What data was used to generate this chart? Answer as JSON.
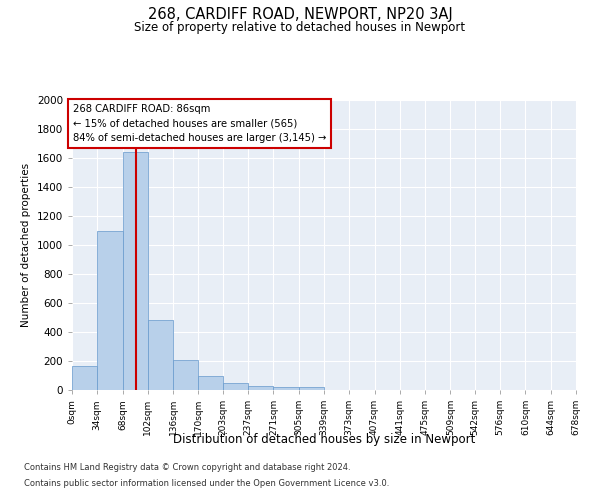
{
  "title": "268, CARDIFF ROAD, NEWPORT, NP20 3AJ",
  "subtitle": "Size of property relative to detached houses in Newport",
  "xlabel": "Distribution of detached houses by size in Newport",
  "ylabel": "Number of detached properties",
  "footnote1": "Contains HM Land Registry data © Crown copyright and database right 2024.",
  "footnote2": "Contains public sector information licensed under the Open Government Licence v3.0.",
  "annotation_title": "268 CARDIFF ROAD: 86sqm",
  "annotation_line1": "← 15% of detached houses are smaller (565)",
  "annotation_line2": "84% of semi-detached houses are larger (3,145) →",
  "property_size": 86,
  "bar_color": "#b8d0ea",
  "bar_edge_color": "#6699cc",
  "vline_color": "#cc0000",
  "annotation_box_color": "#cc0000",
  "background_color": "#e8eef6",
  "ylim": [
    0,
    2000
  ],
  "yticks": [
    0,
    200,
    400,
    600,
    800,
    1000,
    1200,
    1400,
    1600,
    1800,
    2000
  ],
  "bin_edges": [
    0,
    34,
    68,
    102,
    136,
    170,
    203,
    237,
    271,
    305,
    339,
    373,
    407,
    441,
    475,
    509,
    542,
    576,
    610,
    644,
    678
  ],
  "bin_labels": [
    "0sqm",
    "34sqm",
    "68sqm",
    "102sqm",
    "136sqm",
    "170sqm",
    "203sqm",
    "237sqm",
    "271sqm",
    "305sqm",
    "339sqm",
    "373sqm",
    "407sqm",
    "441sqm",
    "475sqm",
    "509sqm",
    "542sqm",
    "576sqm",
    "610sqm",
    "644sqm",
    "678sqm"
  ],
  "bar_heights": [
    165,
    1100,
    1640,
    480,
    205,
    100,
    45,
    30,
    20,
    20,
    0,
    0,
    0,
    0,
    0,
    0,
    0,
    0,
    0,
    0
  ]
}
